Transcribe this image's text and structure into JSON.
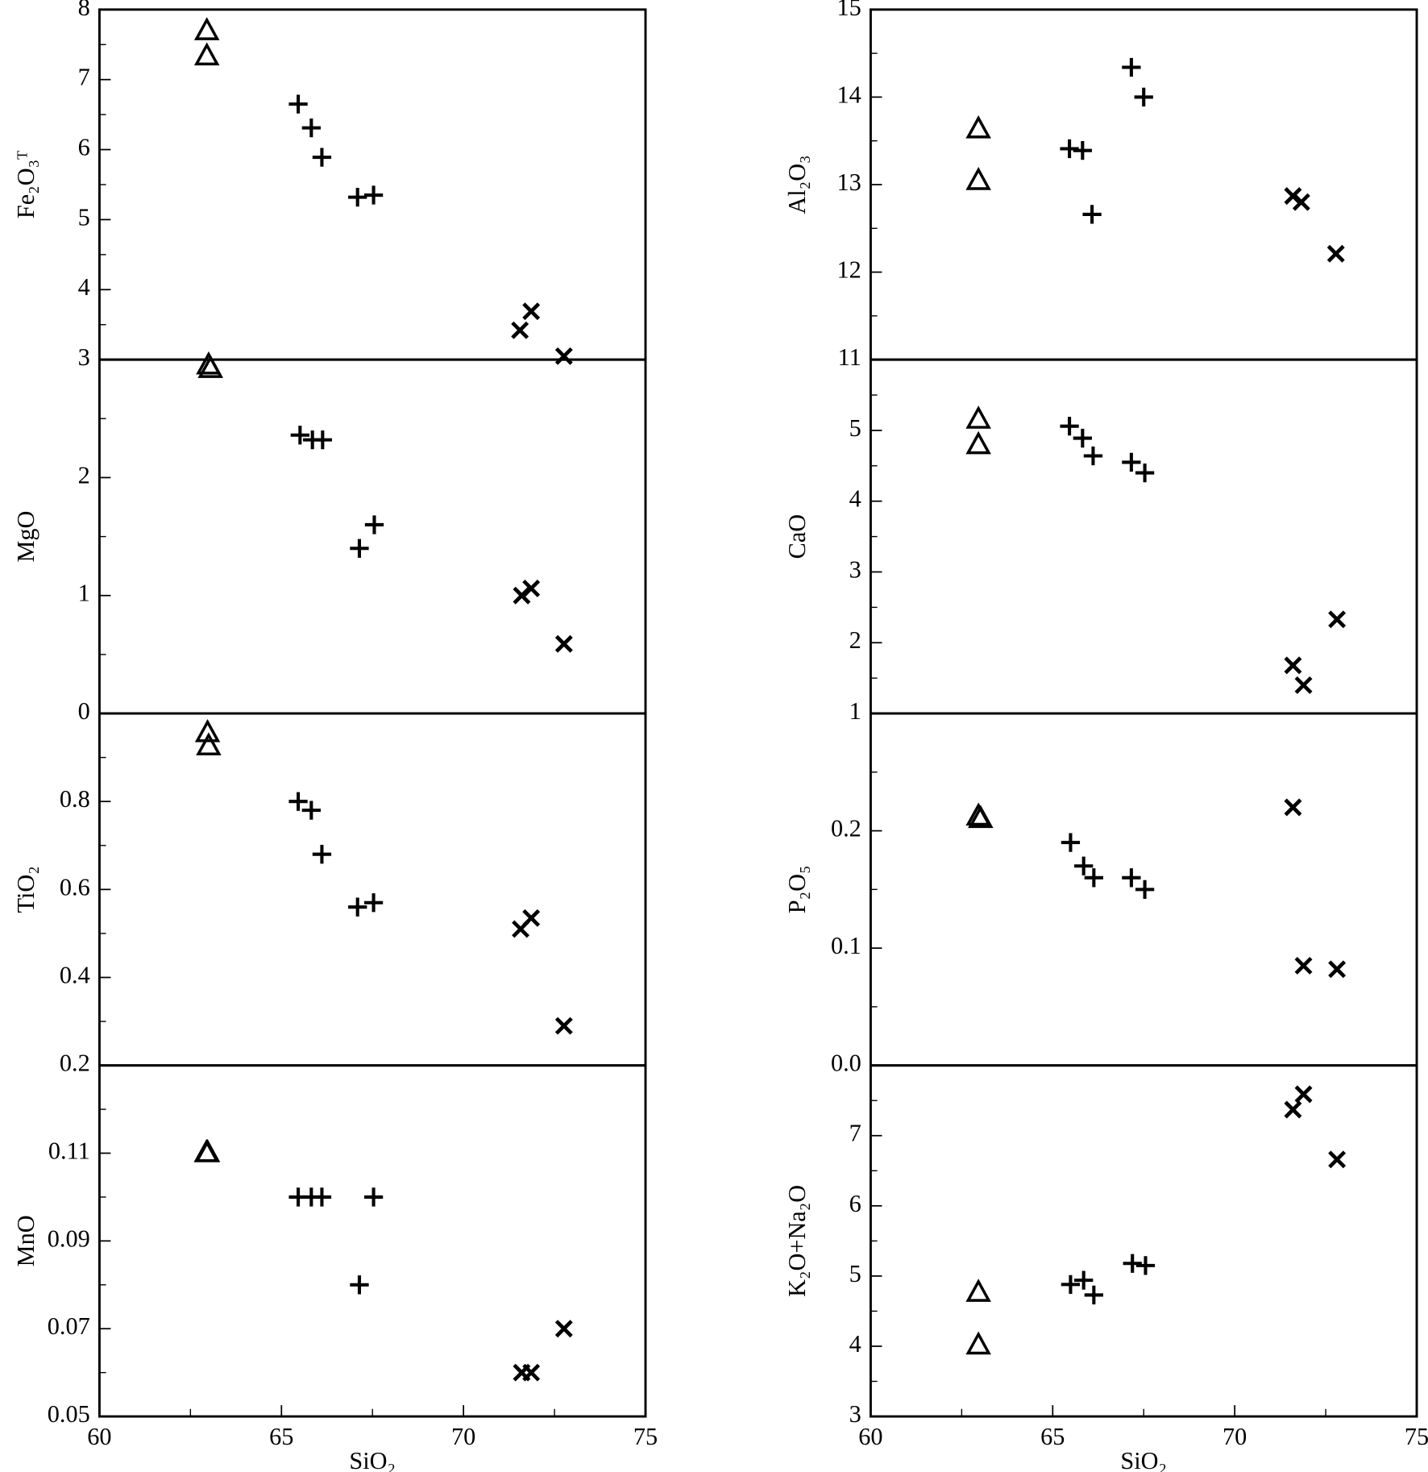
{
  "chart_data": [
    {
      "type": "scatter",
      "ylabel": "Fe₂O₃ᵀ",
      "xlim": [
        60,
        75
      ],
      "ylim": [
        3,
        8
      ],
      "yticks": [
        3,
        4,
        5,
        6,
        7,
        8
      ],
      "minor_yticks": [
        3.5,
        4.5,
        5.5,
        6.5,
        7.5
      ],
      "series": [
        {
          "marker": "triangle",
          "color": "#000000",
          "x": [
            62.95,
            62.95
          ],
          "values": [
            7.69,
            7.33
          ]
        },
        {
          "marker": "plus",
          "color": "#000000",
          "x": [
            65.46,
            65.82,
            66.11,
            67.09,
            67.53
          ],
          "values": [
            6.65,
            6.31,
            5.89,
            5.32,
            5.35
          ]
        },
        {
          "marker": "cross",
          "color": "#000000",
          "x": [
            71.55,
            71.86,
            72.76
          ],
          "values": [
            3.42,
            3.69,
            3.05
          ]
        }
      ]
    },
    {
      "type": "scatter",
      "ylabel": "MgO",
      "xlim": [
        60,
        75
      ],
      "ylim": [
        0,
        3
      ],
      "yticks": [
        0,
        1,
        2
      ],
      "minor_yticks": [
        0.5,
        1.5,
        2.5
      ],
      "series": [
        {
          "marker": "triangle",
          "color": "#000000",
          "x": [
            63.0,
            63.05
          ],
          "values": [
            2.95,
            2.92
          ]
        },
        {
          "marker": "plus",
          "color": "#000000",
          "x": [
            65.51,
            65.85,
            66.13,
            67.14,
            67.55
          ],
          "values": [
            2.36,
            2.32,
            2.32,
            1.4,
            1.6
          ]
        },
        {
          "marker": "cross",
          "color": "#000000",
          "x": [
            71.6,
            71.86,
            72.76
          ],
          "values": [
            1.0,
            1.06,
            0.59
          ]
        }
      ]
    },
    {
      "type": "scatter",
      "ylabel": "TiO₂",
      "xlim": [
        60,
        75
      ],
      "ylim": [
        0.2,
        1.0
      ],
      "yticks": [
        0.2,
        0.4,
        0.6,
        0.8
      ],
      "minor_yticks": [
        0.3,
        0.5,
        0.7,
        0.9
      ],
      "series": [
        {
          "marker": "triangle",
          "color": "#000000",
          "x": [
            62.97,
            63.0
          ],
          "values": [
            0.955,
            0.925
          ]
        },
        {
          "marker": "plus",
          "color": "#000000",
          "x": [
            65.46,
            65.82,
            66.11,
            67.09,
            67.53
          ],
          "values": [
            0.8,
            0.78,
            0.68,
            0.56,
            0.57
          ]
        },
        {
          "marker": "cross",
          "color": "#000000",
          "x": [
            71.57,
            71.86,
            72.76
          ],
          "values": [
            0.51,
            0.535,
            0.29
          ]
        }
      ]
    },
    {
      "type": "scatter",
      "ylabel": "MnO",
      "xlabel": "SiO₂",
      "xlim": [
        60,
        75
      ],
      "ylim": [
        0.05,
        0.13
      ],
      "xticks": [
        60,
        65,
        70,
        75
      ],
      "minor_xticks": [
        62.5,
        67.5,
        72.5
      ],
      "yticks": [
        0.05,
        0.07,
        0.09,
        0.11
      ],
      "minor_yticks": [
        0.06,
        0.08,
        0.1,
        0.12
      ],
      "series": [
        {
          "marker": "triangle",
          "color": "#000000",
          "x": [
            62.94,
            62.97
          ],
          "values": [
            0.11,
            0.11
          ]
        },
        {
          "marker": "plus",
          "color": "#000000",
          "x": [
            65.46,
            65.82,
            66.11,
            67.14,
            67.53
          ],
          "values": [
            0.1,
            0.1,
            0.1,
            0.08,
            0.1
          ]
        },
        {
          "marker": "cross",
          "color": "#000000",
          "x": [
            71.6,
            71.86,
            72.76
          ],
          "values": [
            0.06,
            0.06,
            0.07
          ]
        }
      ]
    },
    {
      "type": "scatter",
      "ylabel": "Al₂O₃",
      "xlim": [
        60,
        75
      ],
      "ylim": [
        11,
        15
      ],
      "yticks": [
        11,
        12,
        13,
        14,
        15
      ],
      "minor_yticks": [
        11.5,
        12.5,
        13.5,
        14.5
      ],
      "series": [
        {
          "marker": "triangle",
          "color": "#000000",
          "x": [
            62.96,
            62.96
          ],
          "values": [
            13.63,
            13.04
          ]
        },
        {
          "marker": "plus",
          "color": "#000000",
          "x": [
            65.46,
            65.82,
            66.08,
            67.16,
            67.5
          ],
          "values": [
            13.41,
            13.39,
            12.66,
            14.34,
            14.0
          ]
        },
        {
          "marker": "cross",
          "color": "#000000",
          "x": [
            71.6,
            71.83,
            72.78
          ],
          "values": [
            12.87,
            12.8,
            12.21
          ]
        }
      ]
    },
    {
      "type": "scatter",
      "ylabel": "CaO",
      "xlim": [
        60,
        75
      ],
      "ylim": [
        1,
        6
      ],
      "yticks": [
        1,
        2,
        3,
        4,
        5
      ],
      "minor_yticks": [
        1.5,
        2.5,
        3.5,
        4.5,
        5.5
      ],
      "series": [
        {
          "marker": "triangle",
          "color": "#000000",
          "x": [
            62.96,
            62.96
          ],
          "values": [
            5.15,
            4.79
          ]
        },
        {
          "marker": "plus",
          "color": "#000000",
          "x": [
            65.46,
            65.82,
            66.11,
            67.16,
            67.53
          ],
          "values": [
            5.06,
            4.89,
            4.64,
            4.55,
            4.4
          ]
        },
        {
          "marker": "cross",
          "color": "#000000",
          "x": [
            71.6,
            71.89,
            72.81
          ],
          "values": [
            1.68,
            1.4,
            2.33
          ]
        }
      ]
    },
    {
      "type": "scatter",
      "ylabel": "P₂O₅",
      "xlim": [
        60,
        75
      ],
      "ylim": [
        0,
        0.3
      ],
      "yticks": [
        {
          "value": 0,
          "label": "0.0"
        },
        0.1,
        0.2
      ],
      "minor_yticks": [
        0.05,
        0.15,
        0.25
      ],
      "series": [
        {
          "marker": "triangle",
          "color": "#000000",
          "x": [
            62.96,
            63.02
          ],
          "values": [
            0.212,
            0.21
          ]
        },
        {
          "marker": "plus",
          "color": "#000000",
          "x": [
            65.49,
            65.85,
            66.13,
            67.16,
            67.53
          ],
          "values": [
            0.19,
            0.17,
            0.16,
            0.16,
            0.15
          ]
        },
        {
          "marker": "cross",
          "color": "#000000",
          "x": [
            71.6,
            71.89,
            72.81
          ],
          "values": [
            0.22,
            0.085,
            0.082
          ]
        }
      ]
    },
    {
      "type": "scatter",
      "ylabel": "K₂O+Na₂O",
      "xlabel": "SiO₂",
      "xlim": [
        60,
        75
      ],
      "ylim": [
        3,
        8
      ],
      "xticks": [
        60,
        65,
        70,
        75
      ],
      "minor_xticks": [
        62.5,
        67.5,
        72.5
      ],
      "yticks": [
        3,
        4,
        5,
        6,
        7
      ],
      "minor_yticks": [
        3.5,
        4.5,
        5.5,
        6.5,
        7.5
      ],
      "series": [
        {
          "marker": "triangle",
          "color": "#000000",
          "x": [
            62.96,
            62.96
          ],
          "values": [
            4.76,
            4.01
          ]
        },
        {
          "marker": "plus",
          "color": "#000000",
          "x": [
            65.49,
            65.85,
            66.13,
            67.19,
            67.55
          ],
          "values": [
            4.88,
            4.94,
            4.73,
            5.18,
            5.15
          ]
        },
        {
          "marker": "cross",
          "color": "#000000",
          "x": [
            71.6,
            71.89,
            72.81
          ],
          "values": [
            7.37,
            7.59,
            6.66
          ]
        }
      ]
    }
  ]
}
